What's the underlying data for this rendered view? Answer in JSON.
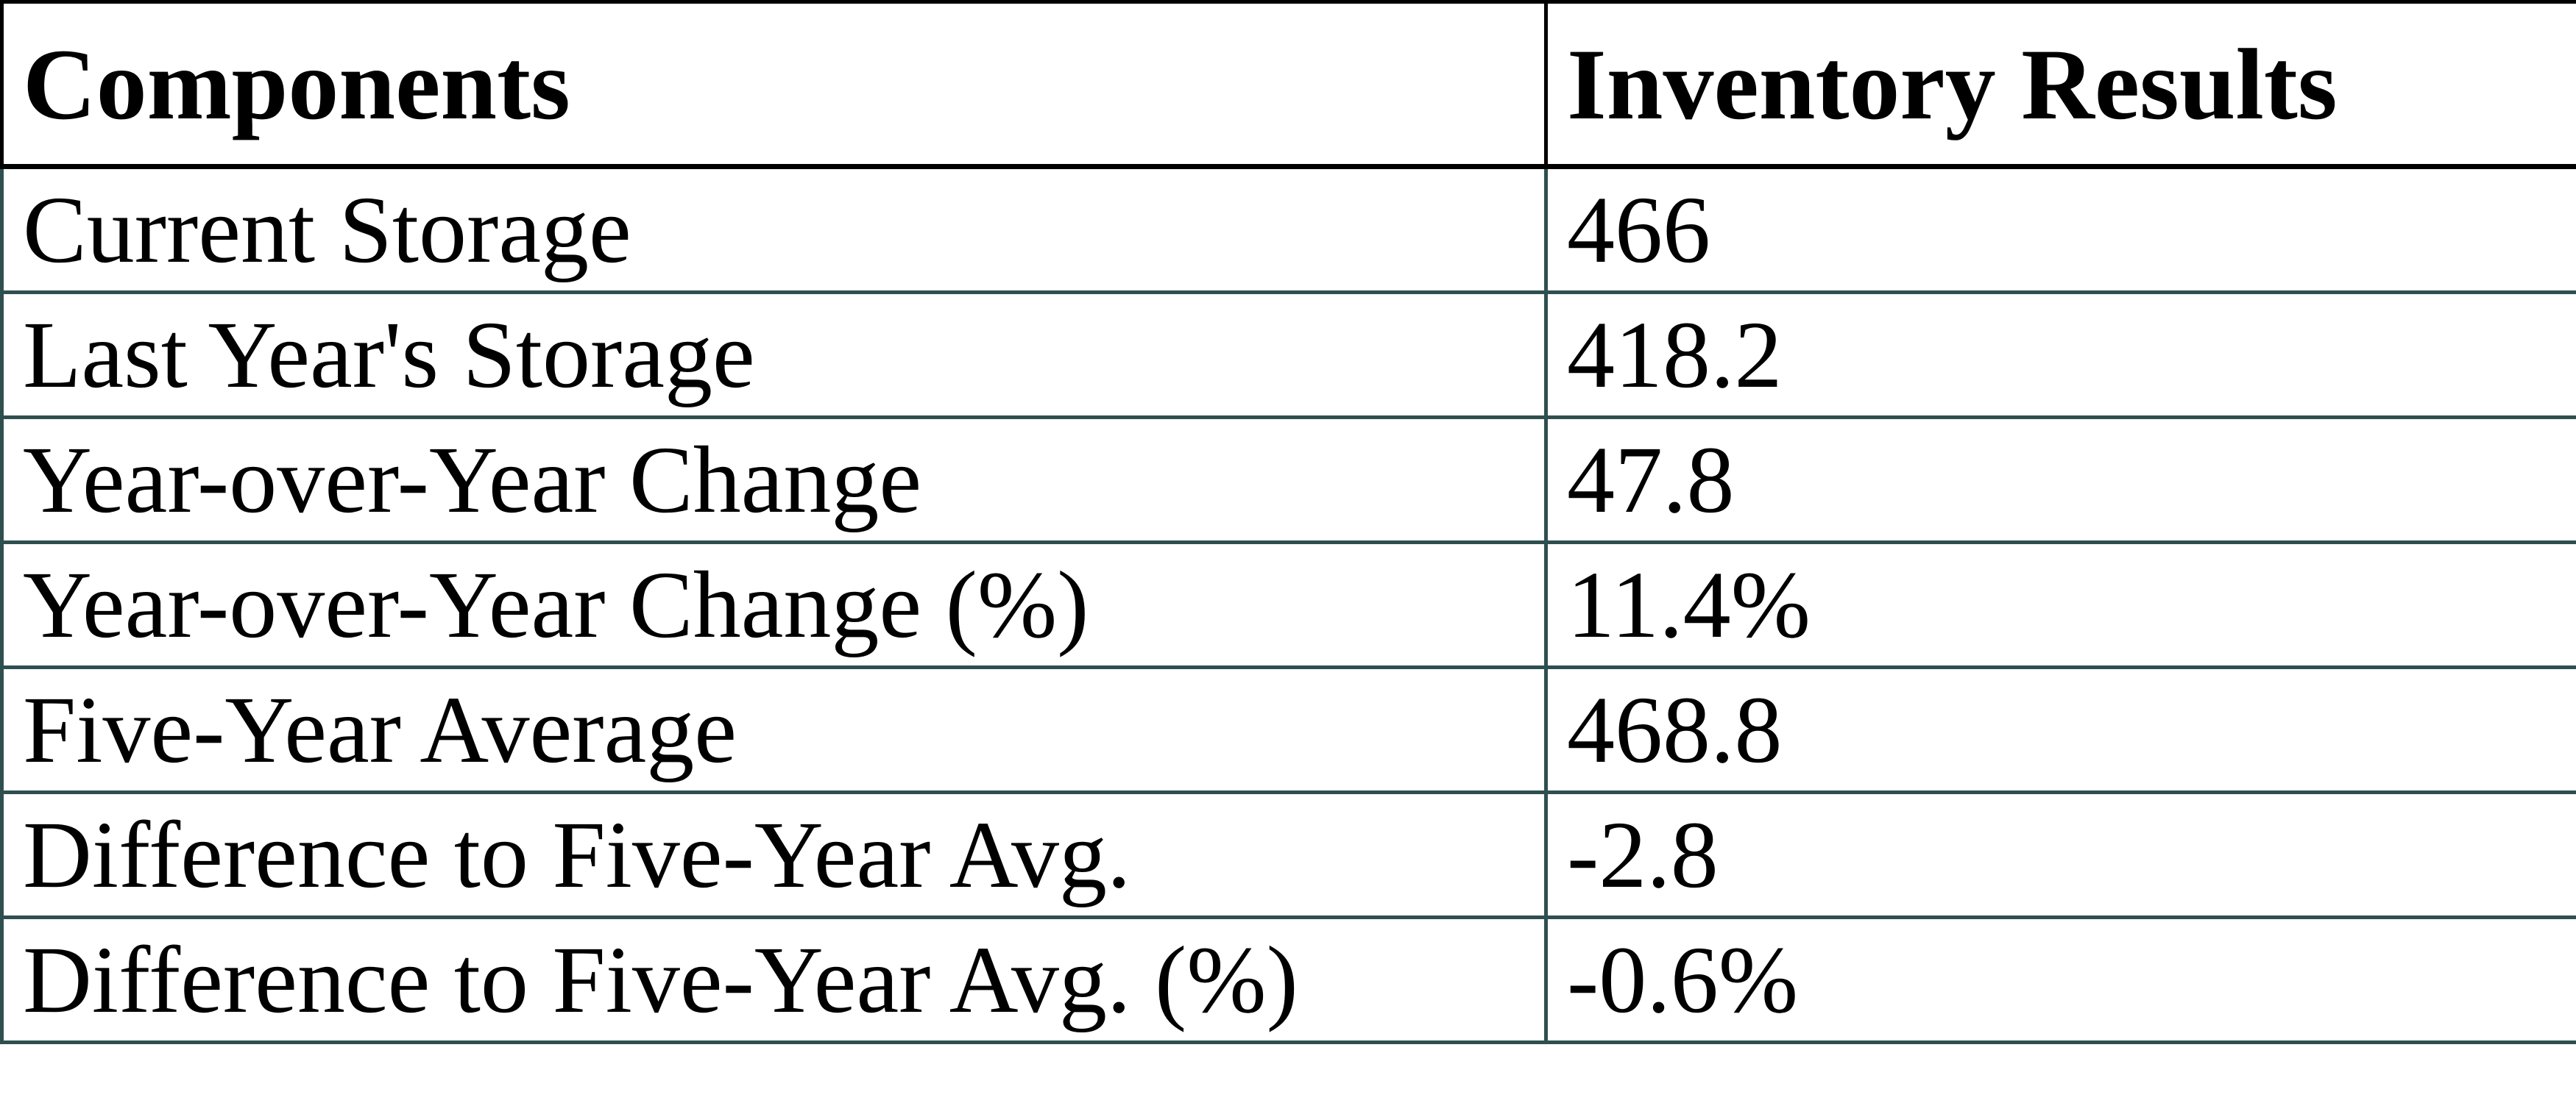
{
  "chart_data": {
    "type": "table",
    "columns": [
      "Components",
      "Inventory Results"
    ],
    "rows": [
      {
        "component": "Current Storage",
        "result": "466"
      },
      {
        "component": "Last Year's Storage",
        "result": "418.2"
      },
      {
        "component": "Year-over-Year Change",
        "result": "47.8"
      },
      {
        "component": "Year-over-Year Change (%)",
        "result": "11.4%"
      },
      {
        "component": "Five-Year Average",
        "result": "468.8"
      },
      {
        "component": "Difference to Five-Year Avg.",
        "result": "-2.8"
      },
      {
        "component": "Difference to Five-Year Avg. (%)",
        "result": "-0.6%"
      }
    ],
    "layout": {
      "header_border_color": "#000000",
      "body_border_color": "#2f4f4f",
      "text_color": "#000000",
      "background_color": "#ffffff"
    }
  }
}
